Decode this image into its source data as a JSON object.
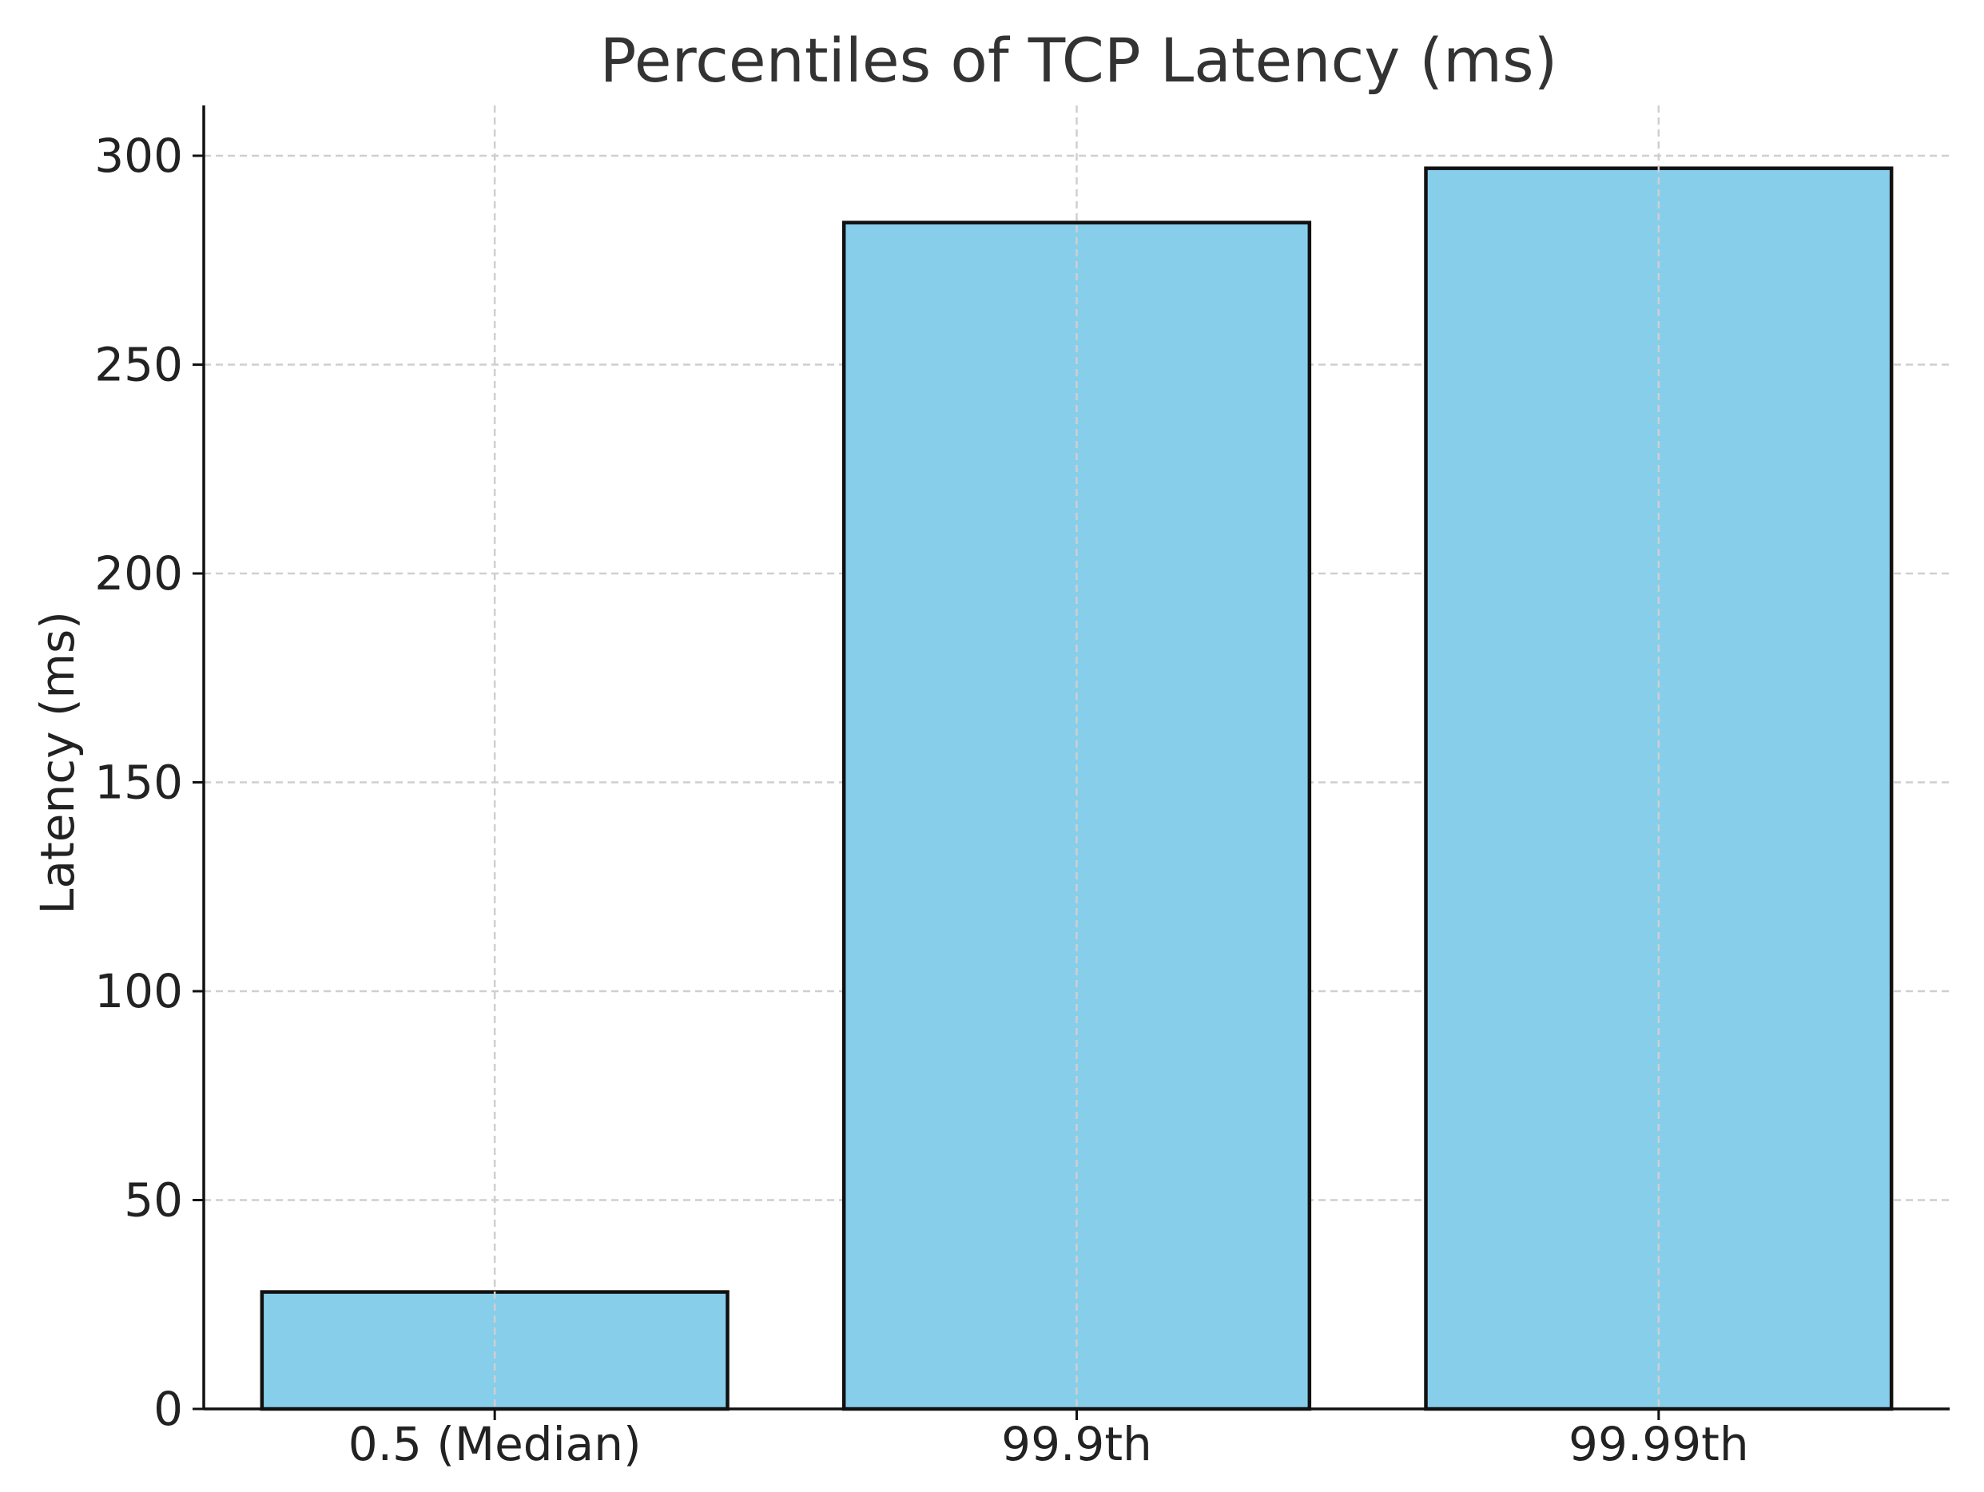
{
  "chart_data": {
    "type": "bar",
    "title": "Percentiles of TCP Latency (ms)",
    "xlabel": "",
    "ylabel": "Latency (ms)",
    "categories": [
      "0.5 (Median)",
      "99.9th",
      "99.99th"
    ],
    "values": [
      28,
      284,
      297
    ],
    "ylim": [
      0,
      312
    ],
    "yticks": [
      0,
      50,
      100,
      150,
      200,
      250,
      300
    ],
    "grid": true,
    "bar_color": "#87CEEB",
    "edge_color": "#111111"
  }
}
